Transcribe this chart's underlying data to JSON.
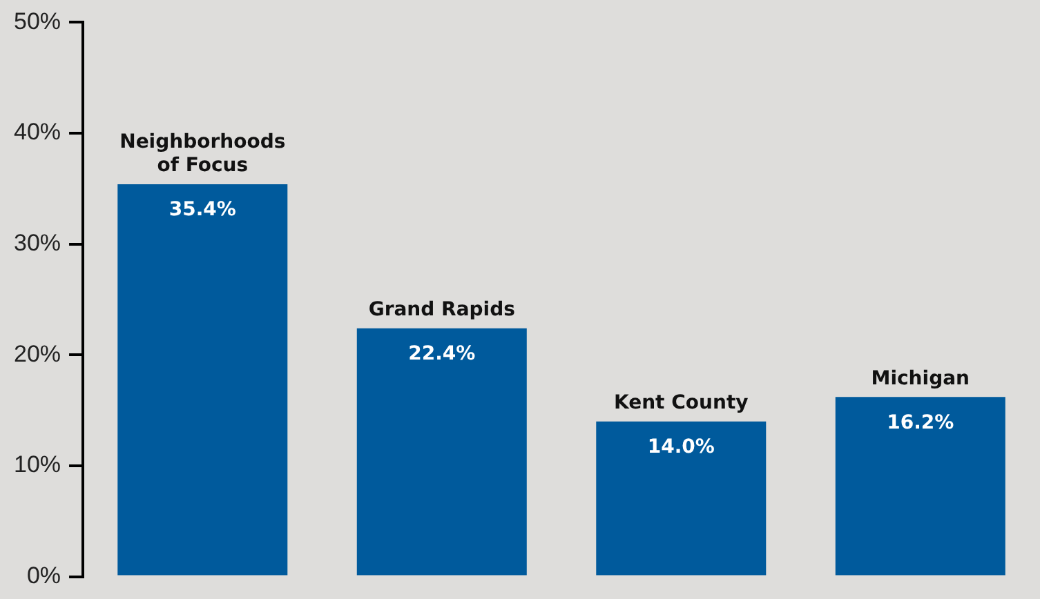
{
  "chart_data": {
    "type": "bar",
    "categories": [
      "Neighborhoods of Focus",
      "Grand Rapids",
      "Kent County",
      "Michigan"
    ],
    "values": [
      35.4,
      22.4,
      14.0,
      16.2
    ],
    "value_labels": [
      "35.4%",
      "22.4%",
      "14.0%",
      "16.2%"
    ],
    "color": "#005a9c",
    "ylim": [
      0,
      50
    ],
    "yticks": [
      {
        "value": 0,
        "label": "0%"
      },
      {
        "value": 10,
        "label": "10%"
      },
      {
        "value": 20,
        "label": "20%"
      },
      {
        "value": 30,
        "label": "30%"
      },
      {
        "value": 40,
        "label": "40%"
      },
      {
        "value": 50,
        "label": "50%"
      }
    ],
    "grid": false,
    "legend": false
  }
}
